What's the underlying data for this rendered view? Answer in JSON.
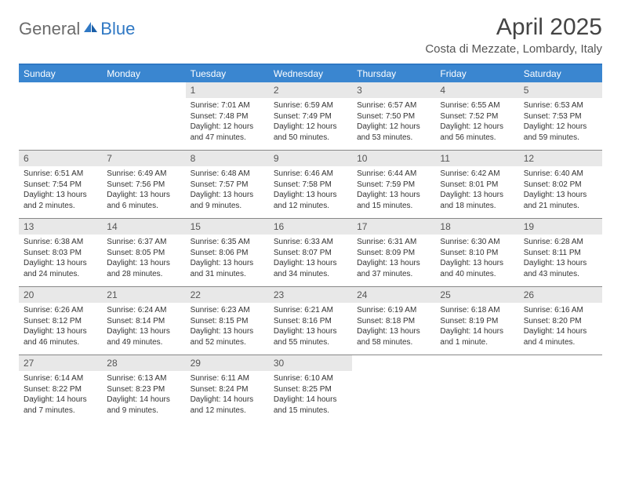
{
  "logo": {
    "general": "General",
    "blue": "Blue"
  },
  "title": "April 2025",
  "location": "Costa di Mezzate, Lombardy, Italy",
  "colors": {
    "header_bg": "#3a86d0",
    "header_border": "#2f78c4",
    "daynum_bg": "#e8e8e8",
    "row_border": "#888888",
    "text": "#333333",
    "title_text": "#444444"
  },
  "weekdays": [
    "Sunday",
    "Monday",
    "Tuesday",
    "Wednesday",
    "Thursday",
    "Friday",
    "Saturday"
  ],
  "weeks": [
    [
      null,
      null,
      {
        "n": "1",
        "sr": "Sunrise: 7:01 AM",
        "ss": "Sunset: 7:48 PM",
        "d1": "Daylight: 12 hours",
        "d2": "and 47 minutes."
      },
      {
        "n": "2",
        "sr": "Sunrise: 6:59 AM",
        "ss": "Sunset: 7:49 PM",
        "d1": "Daylight: 12 hours",
        "d2": "and 50 minutes."
      },
      {
        "n": "3",
        "sr": "Sunrise: 6:57 AM",
        "ss": "Sunset: 7:50 PM",
        "d1": "Daylight: 12 hours",
        "d2": "and 53 minutes."
      },
      {
        "n": "4",
        "sr": "Sunrise: 6:55 AM",
        "ss": "Sunset: 7:52 PM",
        "d1": "Daylight: 12 hours",
        "d2": "and 56 minutes."
      },
      {
        "n": "5",
        "sr": "Sunrise: 6:53 AM",
        "ss": "Sunset: 7:53 PM",
        "d1": "Daylight: 12 hours",
        "d2": "and 59 minutes."
      }
    ],
    [
      {
        "n": "6",
        "sr": "Sunrise: 6:51 AM",
        "ss": "Sunset: 7:54 PM",
        "d1": "Daylight: 13 hours",
        "d2": "and 2 minutes."
      },
      {
        "n": "7",
        "sr": "Sunrise: 6:49 AM",
        "ss": "Sunset: 7:56 PM",
        "d1": "Daylight: 13 hours",
        "d2": "and 6 minutes."
      },
      {
        "n": "8",
        "sr": "Sunrise: 6:48 AM",
        "ss": "Sunset: 7:57 PM",
        "d1": "Daylight: 13 hours",
        "d2": "and 9 minutes."
      },
      {
        "n": "9",
        "sr": "Sunrise: 6:46 AM",
        "ss": "Sunset: 7:58 PM",
        "d1": "Daylight: 13 hours",
        "d2": "and 12 minutes."
      },
      {
        "n": "10",
        "sr": "Sunrise: 6:44 AM",
        "ss": "Sunset: 7:59 PM",
        "d1": "Daylight: 13 hours",
        "d2": "and 15 minutes."
      },
      {
        "n": "11",
        "sr": "Sunrise: 6:42 AM",
        "ss": "Sunset: 8:01 PM",
        "d1": "Daylight: 13 hours",
        "d2": "and 18 minutes."
      },
      {
        "n": "12",
        "sr": "Sunrise: 6:40 AM",
        "ss": "Sunset: 8:02 PM",
        "d1": "Daylight: 13 hours",
        "d2": "and 21 minutes."
      }
    ],
    [
      {
        "n": "13",
        "sr": "Sunrise: 6:38 AM",
        "ss": "Sunset: 8:03 PM",
        "d1": "Daylight: 13 hours",
        "d2": "and 24 minutes."
      },
      {
        "n": "14",
        "sr": "Sunrise: 6:37 AM",
        "ss": "Sunset: 8:05 PM",
        "d1": "Daylight: 13 hours",
        "d2": "and 28 minutes."
      },
      {
        "n": "15",
        "sr": "Sunrise: 6:35 AM",
        "ss": "Sunset: 8:06 PM",
        "d1": "Daylight: 13 hours",
        "d2": "and 31 minutes."
      },
      {
        "n": "16",
        "sr": "Sunrise: 6:33 AM",
        "ss": "Sunset: 8:07 PM",
        "d1": "Daylight: 13 hours",
        "d2": "and 34 minutes."
      },
      {
        "n": "17",
        "sr": "Sunrise: 6:31 AM",
        "ss": "Sunset: 8:09 PM",
        "d1": "Daylight: 13 hours",
        "d2": "and 37 minutes."
      },
      {
        "n": "18",
        "sr": "Sunrise: 6:30 AM",
        "ss": "Sunset: 8:10 PM",
        "d1": "Daylight: 13 hours",
        "d2": "and 40 minutes."
      },
      {
        "n": "19",
        "sr": "Sunrise: 6:28 AM",
        "ss": "Sunset: 8:11 PM",
        "d1": "Daylight: 13 hours",
        "d2": "and 43 minutes."
      }
    ],
    [
      {
        "n": "20",
        "sr": "Sunrise: 6:26 AM",
        "ss": "Sunset: 8:12 PM",
        "d1": "Daylight: 13 hours",
        "d2": "and 46 minutes."
      },
      {
        "n": "21",
        "sr": "Sunrise: 6:24 AM",
        "ss": "Sunset: 8:14 PM",
        "d1": "Daylight: 13 hours",
        "d2": "and 49 minutes."
      },
      {
        "n": "22",
        "sr": "Sunrise: 6:23 AM",
        "ss": "Sunset: 8:15 PM",
        "d1": "Daylight: 13 hours",
        "d2": "and 52 minutes."
      },
      {
        "n": "23",
        "sr": "Sunrise: 6:21 AM",
        "ss": "Sunset: 8:16 PM",
        "d1": "Daylight: 13 hours",
        "d2": "and 55 minutes."
      },
      {
        "n": "24",
        "sr": "Sunrise: 6:19 AM",
        "ss": "Sunset: 8:18 PM",
        "d1": "Daylight: 13 hours",
        "d2": "and 58 minutes."
      },
      {
        "n": "25",
        "sr": "Sunrise: 6:18 AM",
        "ss": "Sunset: 8:19 PM",
        "d1": "Daylight: 14 hours",
        "d2": "and 1 minute."
      },
      {
        "n": "26",
        "sr": "Sunrise: 6:16 AM",
        "ss": "Sunset: 8:20 PM",
        "d1": "Daylight: 14 hours",
        "d2": "and 4 minutes."
      }
    ],
    [
      {
        "n": "27",
        "sr": "Sunrise: 6:14 AM",
        "ss": "Sunset: 8:22 PM",
        "d1": "Daylight: 14 hours",
        "d2": "and 7 minutes."
      },
      {
        "n": "28",
        "sr": "Sunrise: 6:13 AM",
        "ss": "Sunset: 8:23 PM",
        "d1": "Daylight: 14 hours",
        "d2": "and 9 minutes."
      },
      {
        "n": "29",
        "sr": "Sunrise: 6:11 AM",
        "ss": "Sunset: 8:24 PM",
        "d1": "Daylight: 14 hours",
        "d2": "and 12 minutes."
      },
      {
        "n": "30",
        "sr": "Sunrise: 6:10 AM",
        "ss": "Sunset: 8:25 PM",
        "d1": "Daylight: 14 hours",
        "d2": "and 15 minutes."
      },
      null,
      null,
      null
    ]
  ]
}
